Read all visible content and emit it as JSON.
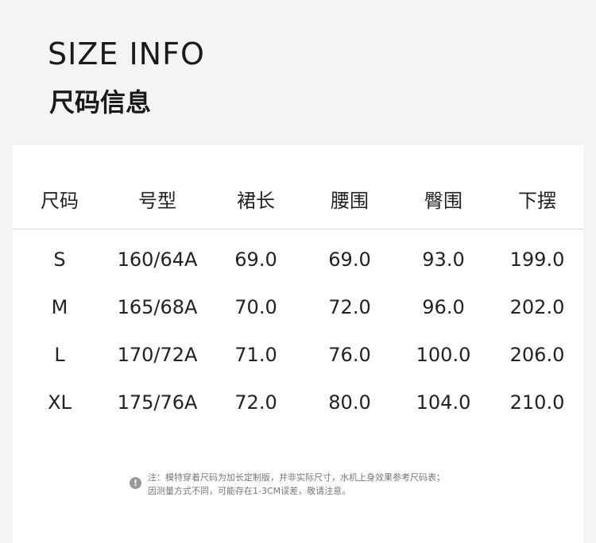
{
  "title_en": "SIZE INFO",
  "title_cn": "尺码信息",
  "headers": [
    "尺码",
    "号型",
    "裙长",
    "腰围",
    "臀围",
    "下摆"
  ],
  "rows": [
    [
      "S",
      "160/64A",
      "69.0",
      "69.0",
      "93.0",
      "199.0"
    ],
    [
      "M",
      "165/68A",
      "70.0",
      "72.0",
      "96.0",
      "202.0"
    ],
    [
      "L",
      "170/72A",
      "71.0",
      "76.0",
      "100.0",
      "206.0"
    ],
    [
      "XL",
      "175/76A",
      "72.0",
      "80.0",
      "104.0",
      "210.0"
    ]
  ],
  "note_icon": "exclamation-circle-icon",
  "note_lines": [
    "注：模特穿着尺码为加长定制版，并非实际尺寸，水机上身效果参考尺码表；",
    "因测量方式不同，可能存在1-3CM误差，敬请注意。"
  ]
}
